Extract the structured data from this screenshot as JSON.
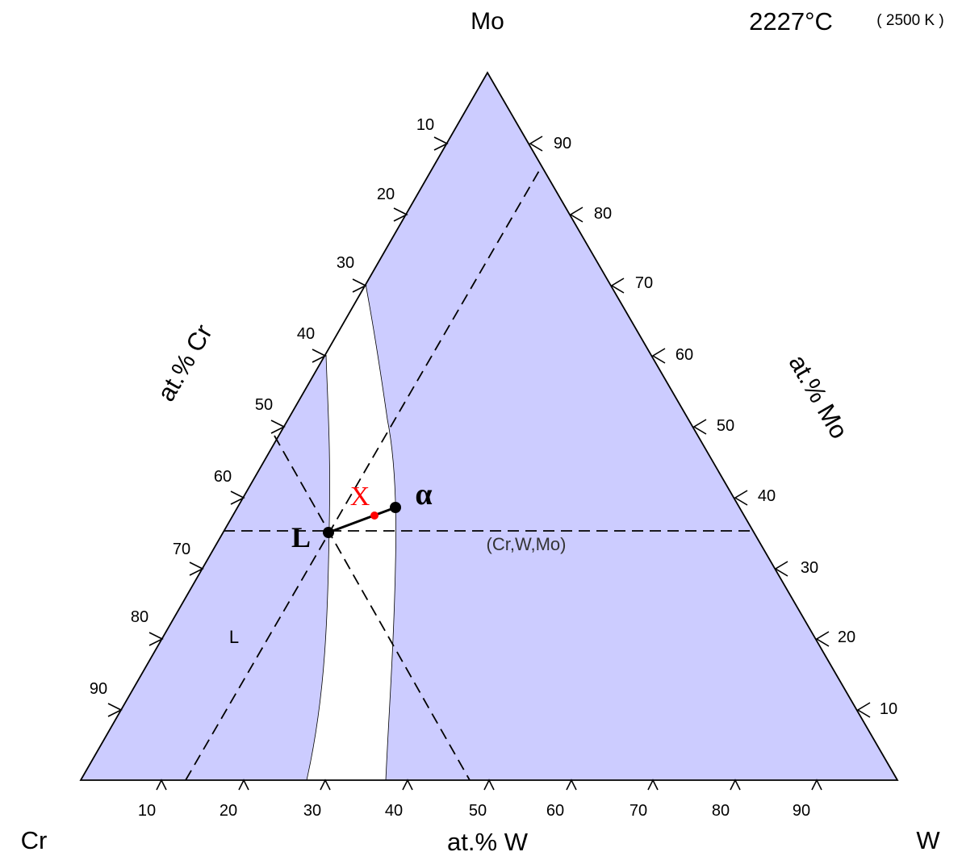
{
  "diagram": {
    "temperature": "2227°C",
    "temperature_kelvin": "( 2500 K )",
    "vertices": {
      "top": "Mo",
      "left": "Cr",
      "right": "W"
    },
    "axis_titles": {
      "cr": "at.% Cr",
      "mo": "at.% Mo",
      "w": "at.% W"
    },
    "ticks": {
      "bottom_w": [
        "10",
        "20",
        "30",
        "40",
        "50",
        "60",
        "70",
        "80",
        "90"
      ],
      "left_cr": [
        "10",
        "20",
        "30",
        "40",
        "50",
        "60",
        "70",
        "80",
        "90"
      ],
      "right_mo": [
        "90",
        "80",
        "70",
        "60",
        "50",
        "40",
        "30",
        "20",
        "10"
      ]
    },
    "phases": {
      "solid_region": "(Cr,W,Mo)",
      "liquid_region": "L",
      "liquid_point": "L",
      "alpha_point": "α",
      "overall_point": "X"
    },
    "colors": {
      "phase_fill": "#ccccff",
      "outline": "#000000",
      "marker_x": "#ff0000"
    }
  }
}
